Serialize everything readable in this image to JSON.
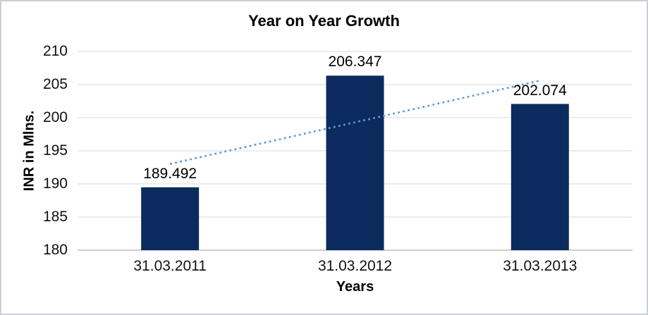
{
  "chart_data": {
    "type": "bar",
    "title": "Year on Year Growth",
    "xlabel": "Years",
    "ylabel": "INR in Mlns.",
    "categories": [
      "31.03.2011",
      "31.03.2012",
      "31.03.2013"
    ],
    "values": [
      189.492,
      206.347,
      202.074
    ],
    "data_labels": [
      "189.492",
      "206.347",
      "202.074"
    ],
    "ylim": [
      180,
      210
    ],
    "yticks": [
      180,
      185,
      190,
      195,
      200,
      205,
      210
    ],
    "grid": true,
    "legend": "none",
    "trendline": {
      "type": "linear",
      "style": "dotted",
      "fit_start_value": 193.013,
      "fit_end_value": 205.595
    }
  },
  "colors": {
    "bar": "#0b2b5e",
    "trendline": "#5b9bd5",
    "gridline": "#d9d9d9",
    "axis_line": "#bfbfbf",
    "text": "#000000",
    "border": "#cbd0d5"
  }
}
